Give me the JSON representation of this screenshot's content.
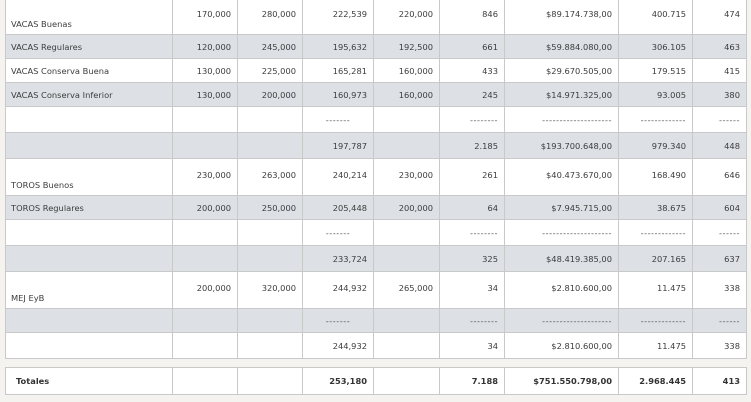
{
  "rows": [
    {
      "name": "VACAS Buenas",
      "v1": "170,000",
      "v2": "280,000",
      "v3": "222,539",
      "v4": "220,000",
      "v5": "846",
      "v6": "$89.174.738,00",
      "v7": "400.715",
      "v8": "474"
    },
    {
      "name": "VACAS Regulares",
      "v1": "120,000",
      "v2": "245,000",
      "v3": "195,632",
      "v4": "192,500",
      "v5": "661",
      "v6": "$59.884.080,00",
      "v7": "306.105",
      "v8": "463"
    },
    {
      "name": "VACAS Conserva Buena",
      "v1": "130,000",
      "v2": "225,000",
      "v3": "165,281",
      "v4": "160,000",
      "v5": "433",
      "v6": "$29.670.505,00",
      "v7": "179.515",
      "v8": "415"
    },
    {
      "name": "VACAS Conserva Inferior",
      "v1": "130,000",
      "v2": "200,000",
      "v3": "160,973",
      "v4": "160,000",
      "v5": "245",
      "v6": "$14.971.325,00",
      "v7": "93.005",
      "v8": "380"
    },
    {
      "name": "TOROS Buenos",
      "v1": "230,000",
      "v2": "263,000",
      "v3": "240,214",
      "v4": "230,000",
      "v5": "261",
      "v6": "$40.473.670,00",
      "v7": "168.490",
      "v8": "646"
    },
    {
      "name": "TOROS Regulares",
      "v1": "200,000",
      "v2": "250,000",
      "v3": "205,448",
      "v4": "200,000",
      "v5": "64",
      "v6": "$7.945.715,00",
      "v7": "38.675",
      "v8": "604"
    },
    {
      "name": "MEJ EyB",
      "v1": "200,000",
      "v2": "320,000",
      "v3": "244,932",
      "v4": "265,000",
      "v5": "34",
      "v6": "$2.810.600,00",
      "v7": "11.475",
      "v8": "338"
    }
  ],
  "separators": {
    "c3": "-------",
    "c5": "--------",
    "c6": "--------------------",
    "c7": "-------------",
    "c8": "------"
  },
  "subtotals": [
    {
      "v3": "197,787",
      "v5": "2.185",
      "v6": "$193.700.648,00",
      "v7": "979.340",
      "v8": "448"
    },
    {
      "v3": "233,724",
      "v5": "325",
      "v6": "$48.419.385,00",
      "v7": "207.165",
      "v8": "637"
    },
    {
      "v3": "244,932",
      "v5": "34",
      "v6": "$2.810.600,00",
      "v7": "11.475",
      "v8": "338"
    }
  ],
  "totals": {
    "label": "Totales",
    "v3": "253,180",
    "v5": "7.188",
    "v6": "$751.550.798,00",
    "v7": "2.968.445",
    "v8": "413"
  }
}
